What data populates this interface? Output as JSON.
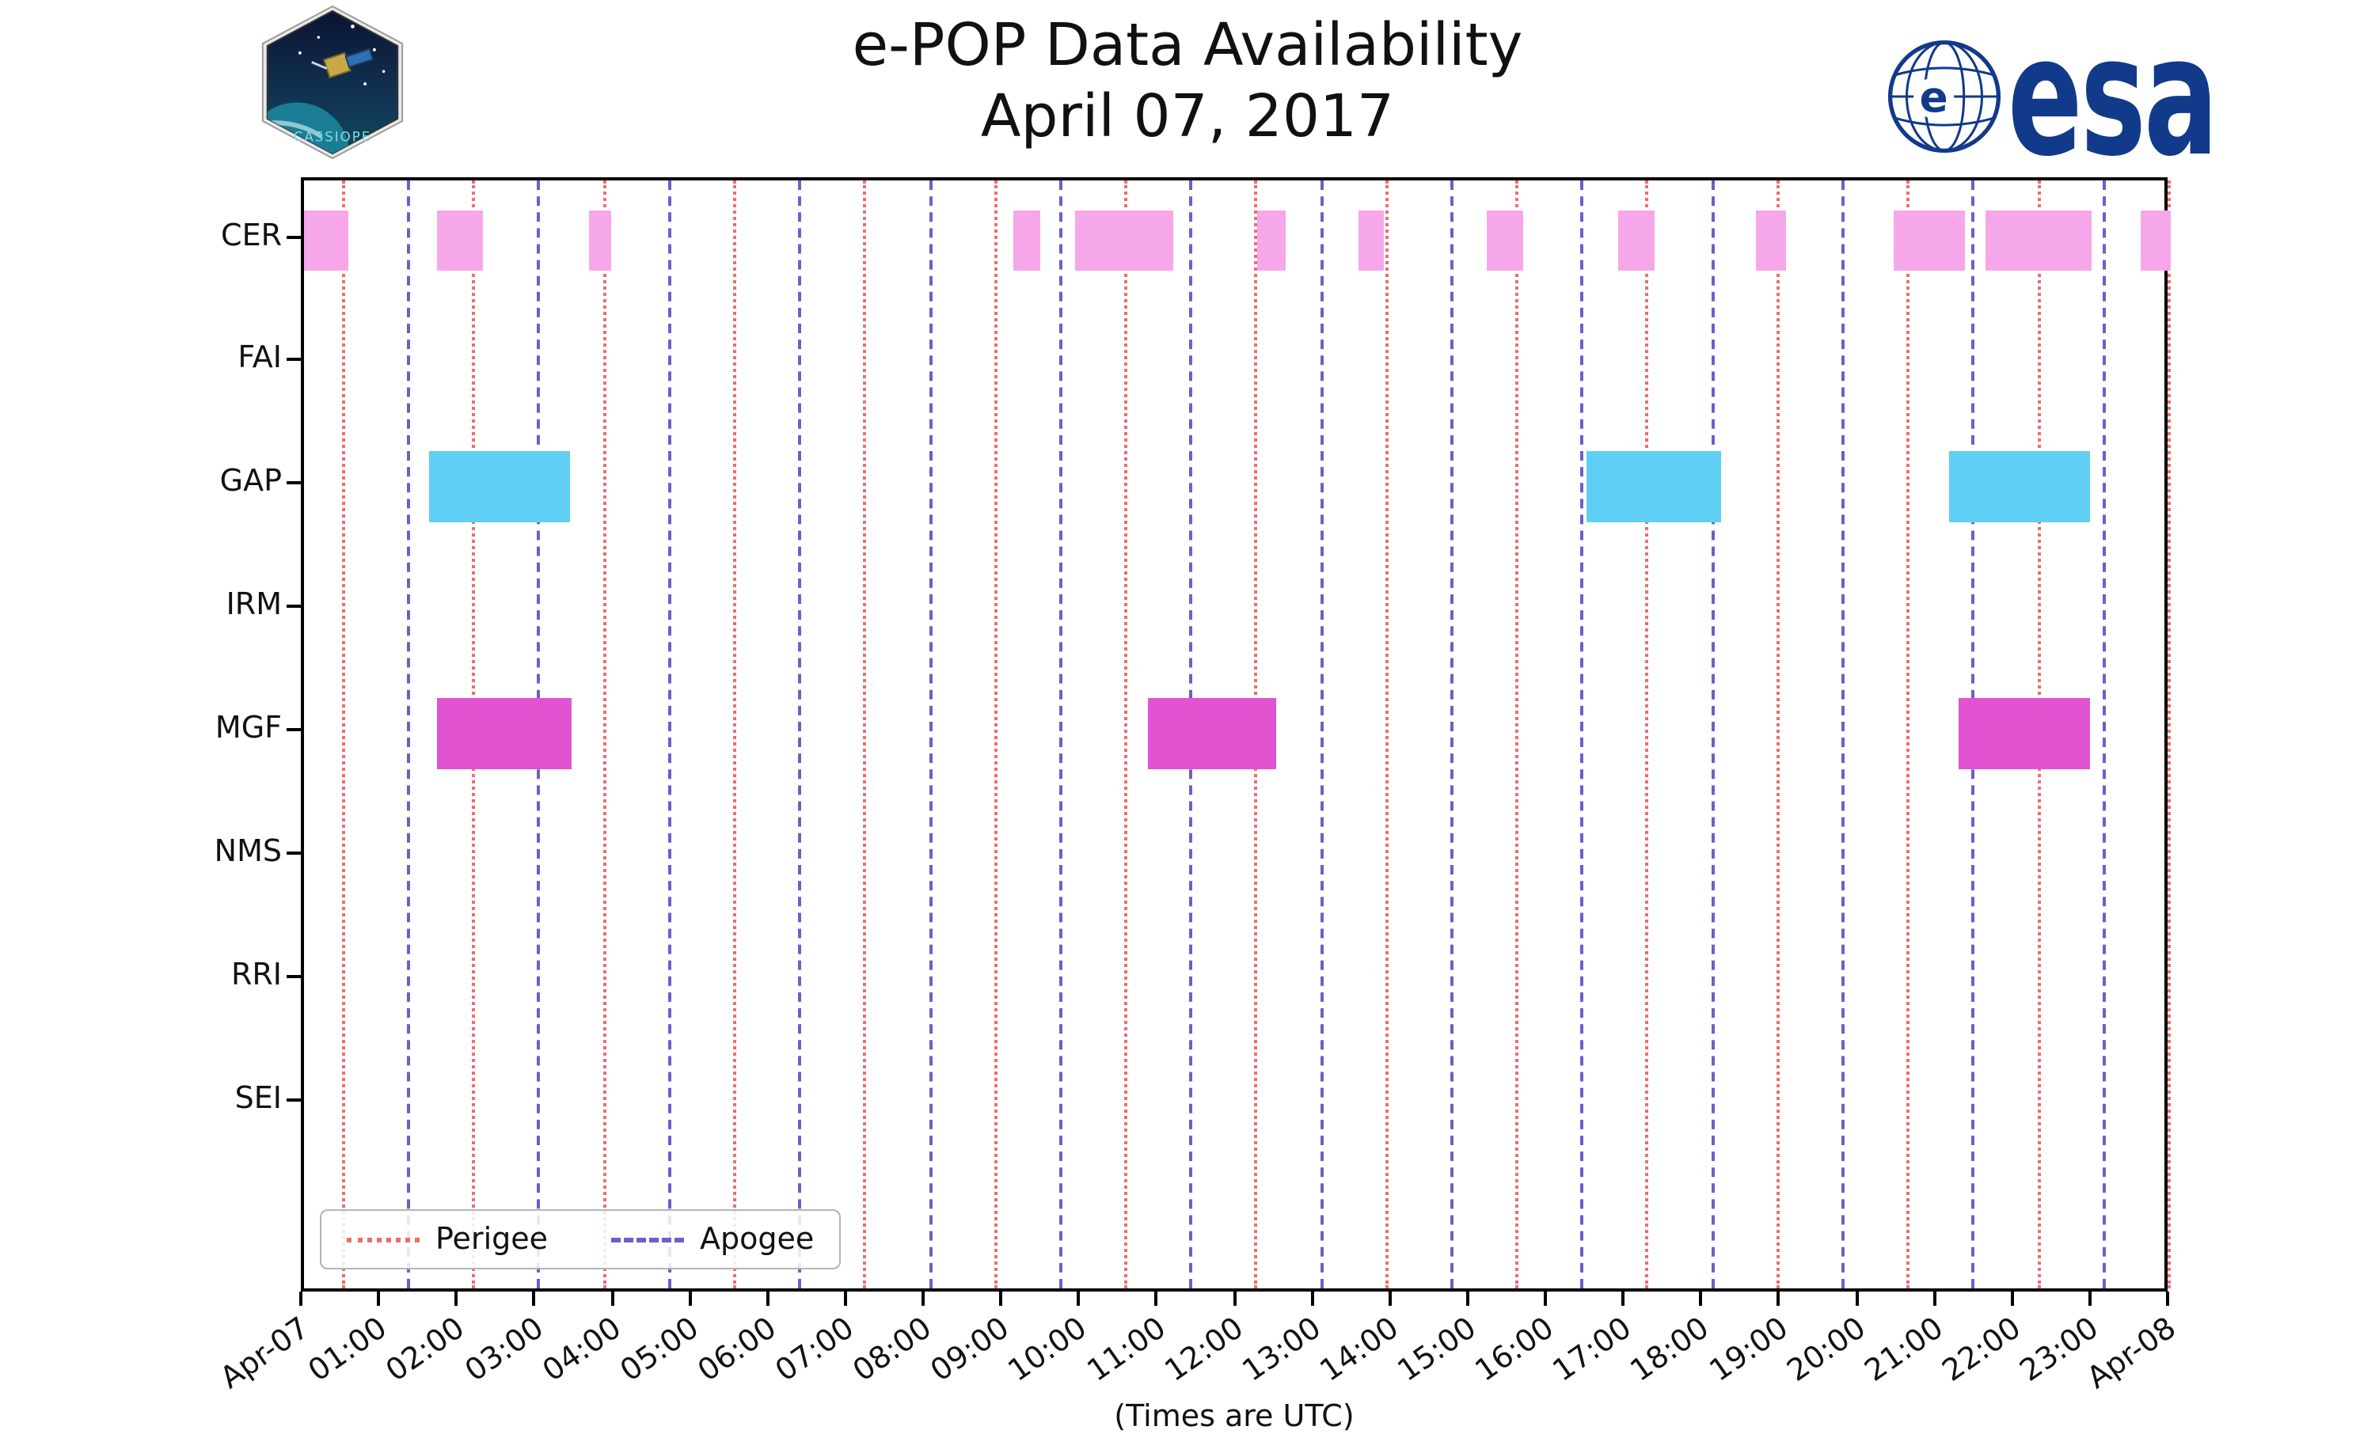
{
  "header": {
    "title": "e-POP Data Availability",
    "subtitle": "April 07, 2017"
  },
  "footer": {
    "xlabel": "(Times are UTC)"
  },
  "logos": {
    "cassiope_label": "CASSIOPE",
    "esa_label": "esa",
    "esa_globe_letter": "e",
    "esa_color": "#123a8a"
  },
  "legend": {
    "perigee_label": "Perigee",
    "apogee_label": "Apogee"
  },
  "chart_data": {
    "type": "timeline",
    "title": "e-POP Data Availability",
    "subtitle": "April 07, 2017",
    "xlabel": "(Times are UTC)",
    "x_unit": "hours UTC on 2017-04-07",
    "xlim": [
      0,
      24
    ],
    "x_tick_labels": [
      "Apr-07",
      "01:00",
      "02:00",
      "03:00",
      "04:00",
      "05:00",
      "06:00",
      "07:00",
      "08:00",
      "09:00",
      "10:00",
      "11:00",
      "12:00",
      "13:00",
      "14:00",
      "15:00",
      "16:00",
      "17:00",
      "18:00",
      "19:00",
      "20:00",
      "21:00",
      "22:00",
      "23:00",
      "Apr-08"
    ],
    "instruments": [
      "CER",
      "FAI",
      "GAP",
      "IRM",
      "MGF",
      "NMS",
      "RRI",
      "SEI"
    ],
    "availability": [
      {
        "instrument": "CER",
        "color": "#f6a7ea",
        "intervals": [
          [
            0.0,
            0.57
          ],
          [
            1.71,
            2.29
          ],
          [
            3.67,
            3.95
          ],
          [
            9.11,
            9.47
          ],
          [
            9.92,
            11.18
          ],
          [
            12.25,
            12.62
          ],
          [
            13.55,
            13.88
          ],
          [
            15.2,
            15.68
          ],
          [
            16.9,
            17.36
          ],
          [
            18.66,
            19.05
          ],
          [
            20.43,
            21.36
          ],
          [
            21.62,
            22.98
          ],
          [
            23.62,
            24.0
          ]
        ]
      },
      {
        "instrument": "FAI",
        "color": "#f6a7ea",
        "intervals": []
      },
      {
        "instrument": "GAP",
        "color": "#5fd0f4",
        "intervals": [
          [
            1.6,
            3.43
          ],
          [
            16.49,
            18.22
          ],
          [
            21.14,
            22.96
          ]
        ]
      },
      {
        "instrument": "IRM",
        "color": "#5fd0f4",
        "intervals": []
      },
      {
        "instrument": "MGF",
        "color": "#e253d2",
        "intervals": [
          [
            1.71,
            3.43
          ],
          [
            10.85,
            12.5
          ],
          [
            21.28,
            22.96
          ]
        ]
      },
      {
        "instrument": "NMS",
        "color": "#e253d2",
        "intervals": []
      },
      {
        "instrument": "RRI",
        "color": "#e253d2",
        "intervals": []
      },
      {
        "instrument": "SEI",
        "color": "#e253d2",
        "intervals": []
      }
    ],
    "events": {
      "perigee": {
        "label": "Perigee",
        "style": "dotted",
        "color": "#ee6d6d",
        "hours": [
          0.48,
          2.16,
          3.84,
          5.51,
          7.19,
          8.87,
          10.54,
          12.22,
          13.9,
          15.57,
          17.25,
          18.93,
          20.6,
          22.28,
          23.96
        ]
      },
      "apogee": {
        "label": "Apogee",
        "style": "dashed",
        "color": "#6c60c6",
        "hours": [
          1.32,
          3.0,
          4.68,
          6.35,
          8.03,
          9.71,
          11.38,
          13.06,
          14.74,
          16.41,
          18.09,
          19.77,
          21.44,
          23.12
        ]
      }
    },
    "legend_position": "lower left",
    "grid": false
  }
}
